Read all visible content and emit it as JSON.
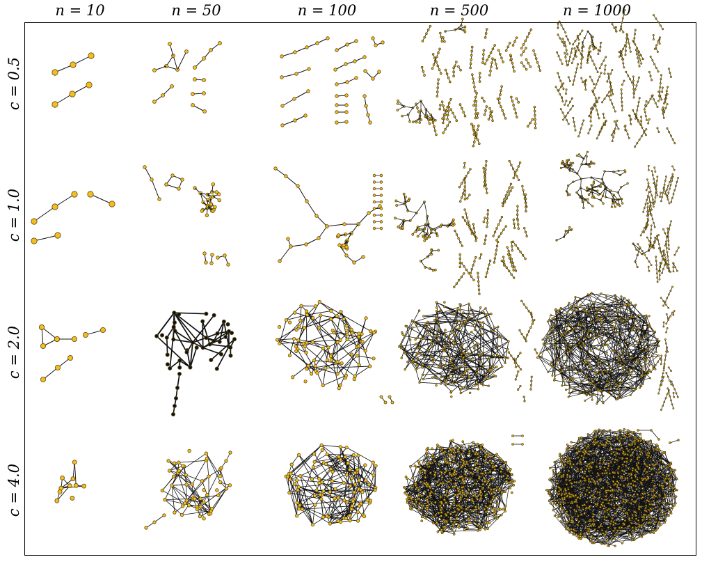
{
  "columns": [
    {
      "label": "n = 10",
      "n": 10
    },
    {
      "label": "n = 50",
      "n": 50
    },
    {
      "label": "n = 100",
      "n": 100
    },
    {
      "label": "n = 500",
      "n": 500
    },
    {
      "label": "n = 1000",
      "n": 1000
    }
  ],
  "rows": [
    {
      "label": "c = 0.5",
      "c": 0.5
    },
    {
      "label": "c = 1.0",
      "c": 1.0
    },
    {
      "label": "c = 2.0",
      "c": 2.0
    },
    {
      "label": "c = 4.0",
      "c": 4.0
    }
  ],
  "colors": {
    "node_fill": "#f5bd1f",
    "node_stroke": "#5a4a10",
    "edge": "#111111",
    "highlight_node": "#111111"
  }
}
